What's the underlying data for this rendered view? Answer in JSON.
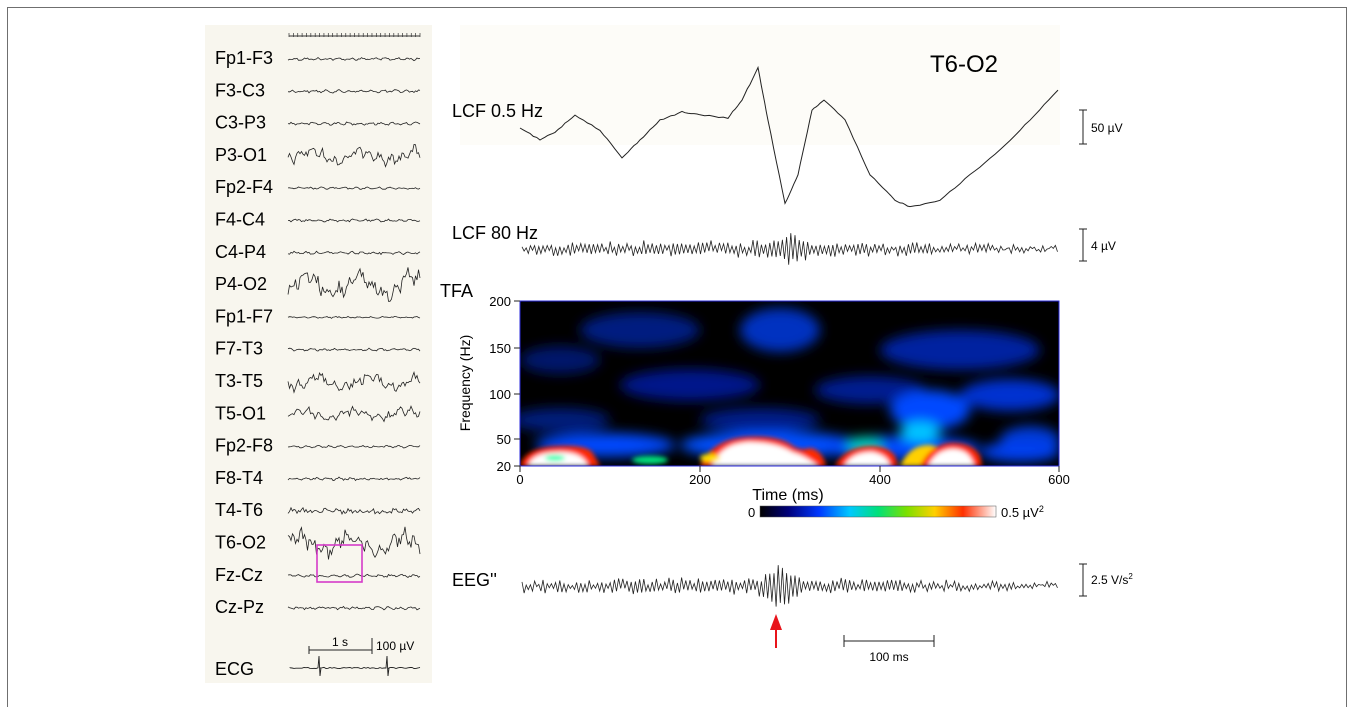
{
  "montage": {
    "channels": [
      "Fp1-F3",
      "F3-C3",
      "C3-P3",
      "P3-O1",
      "Fp2-F4",
      "F4-C4",
      "C4-P4",
      "P4-O2",
      "Fp1-F7",
      "F7-T3",
      "T3-T5",
      "T5-O1",
      "Fp2-F8",
      "F8-T4",
      "T4-T6",
      "T6-O2",
      "Fz-Cz",
      "Cz-Pz"
    ],
    "ecg_label": "ECG",
    "scale_time": "1 s",
    "scale_amp": "100 µV"
  },
  "panel": {
    "title": "T6-O2",
    "lcf05": {
      "label": "LCF 0.5 Hz",
      "scale": "50 µV"
    },
    "lcf80": {
      "label": "LCF 80 Hz",
      "scale": "4 µV"
    },
    "tfa": {
      "label": "TFA",
      "ylabel": "Frequency (Hz)",
      "yticks": [
        "200",
        "150",
        "100",
        "50",
        "20"
      ],
      "xlabel": "Time (ms)",
      "xticks": [
        "0",
        "200",
        "400",
        "600"
      ],
      "colorbar_min": "0",
      "colorbar_max": "0.5 µV",
      "colorbar_max_exp": "2"
    },
    "eeg2": {
      "label": "EEG''",
      "scale": "2.5 V/s",
      "scale_exp": "2"
    },
    "time_scale": "100 ms"
  },
  "colors": {
    "trace": "#222222",
    "highlight_box": "#d63bc8",
    "arrow": "#e8141b",
    "eeg_panel_bg": "#f8f6ee",
    "axis": "#2b2bdc"
  }
}
